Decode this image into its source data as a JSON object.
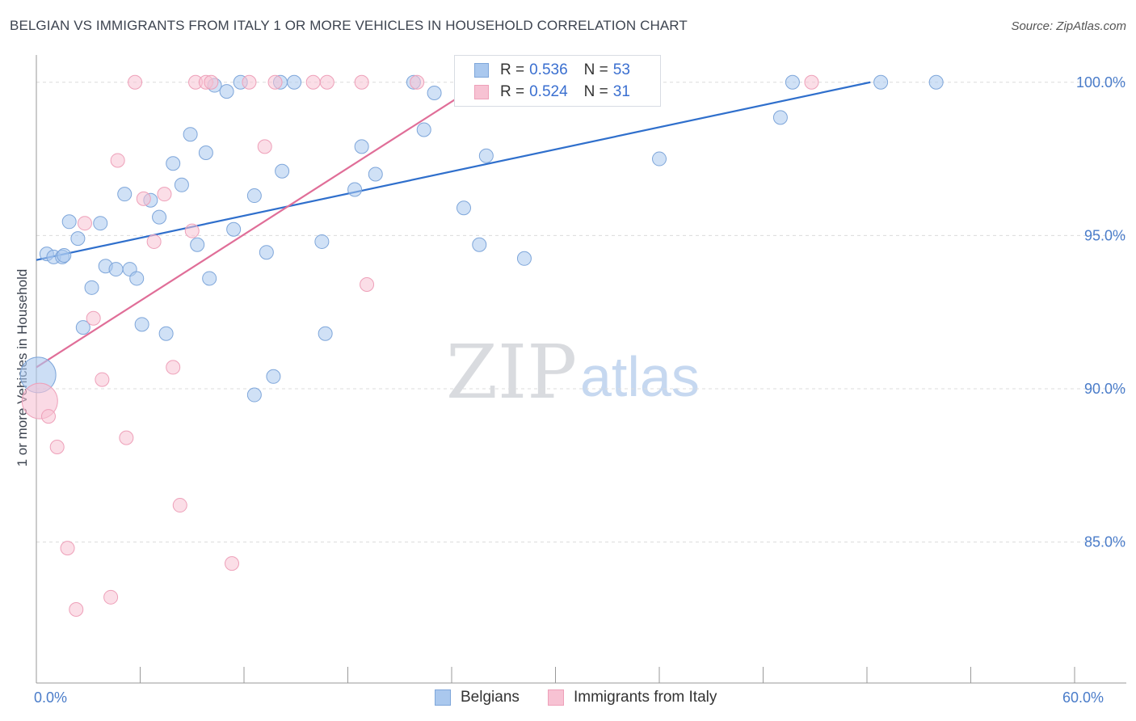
{
  "title": "BELGIAN VS IMMIGRANTS FROM ITALY 1 OR MORE VEHICLES IN HOUSEHOLD CORRELATION CHART",
  "source": "Source: ZipAtlas.com",
  "watermark": {
    "zip": "ZIP",
    "atlas": "atlas"
  },
  "legend_top": {
    "belgians": {
      "r_label": "R =",
      "r_value": "0.536",
      "n_label": "N =",
      "n_value": "53"
    },
    "italy": {
      "r_label": "R =",
      "r_value": "0.524",
      "n_label": "N =",
      "n_value": "31"
    }
  },
  "legend_bottom": {
    "belgians": "Belgians",
    "italy": "Immigrants from Italy"
  },
  "colors": {
    "belgians_fill": "#aac8ee",
    "belgians_stroke": "#7ea6da",
    "belgians_line": "#2f6fcc",
    "italy_fill": "#f7c2d3",
    "italy_stroke": "#eea0b9",
    "italy_line": "#e06e98",
    "grid": "#dcdcdc",
    "axis": "#999999",
    "tick_text": "#4a7cc9"
  },
  "chart_data": {
    "type": "scatter",
    "title": "BELGIAN VS IMMIGRANTS FROM ITALY 1 OR MORE VEHICLES IN HOUSEHOLD CORRELATION CHART",
    "xlabel": "",
    "ylabel": "1 or more Vehicles in Household",
    "xlim": [
      0,
      60
    ],
    "ylim": [
      80.4,
      100.6
    ],
    "x_tick_labels": [
      {
        "value": 0,
        "label": "0.0%"
      },
      {
        "value": 60,
        "label": "60.0%"
      }
    ],
    "x_minor_ticks": [
      6,
      12,
      18,
      24,
      30,
      36,
      42,
      48,
      54,
      60
    ],
    "y_ticks": [
      {
        "value": 85,
        "label": "85.0%"
      },
      {
        "value": 90,
        "label": "90.0%"
      },
      {
        "value": 95,
        "label": "95.0%"
      },
      {
        "value": 100,
        "label": "100.0%"
      }
    ],
    "grid": true,
    "series": [
      {
        "name": "Belgians",
        "trend": {
          "x": [
            0,
            48.2
          ],
          "y": [
            94.2,
            100.0
          ]
        },
        "points": [
          {
            "x": 0.1,
            "y": 90.45,
            "big": true
          },
          {
            "x": 0.6,
            "y": 94.4
          },
          {
            "x": 1.0,
            "y": 94.3
          },
          {
            "x": 1.5,
            "y": 94.3
          },
          {
            "x": 1.9,
            "y": 95.45
          },
          {
            "x": 2.4,
            "y": 94.9
          },
          {
            "x": 2.7,
            "y": 92.0
          },
          {
            "x": 3.2,
            "y": 93.3
          },
          {
            "x": 3.7,
            "y": 95.4
          },
          {
            "x": 4.0,
            "y": 94.0
          },
          {
            "x": 4.6,
            "y": 93.9
          },
          {
            "x": 5.1,
            "y": 96.35
          },
          {
            "x": 5.4,
            "y": 93.9
          },
          {
            "x": 5.8,
            "y": 93.6
          },
          {
            "x": 6.1,
            "y": 92.1
          },
          {
            "x": 6.6,
            "y": 96.15
          },
          {
            "x": 7.1,
            "y": 95.6
          },
          {
            "x": 7.5,
            "y": 91.8
          },
          {
            "x": 7.9,
            "y": 97.35
          },
          {
            "x": 8.4,
            "y": 96.65
          },
          {
            "x": 8.9,
            "y": 98.3
          },
          {
            "x": 9.3,
            "y": 94.7
          },
          {
            "x": 9.8,
            "y": 97.7
          },
          {
            "x": 10.0,
            "y": 93.6
          },
          {
            "x": 10.3,
            "y": 99.9
          },
          {
            "x": 11.0,
            "y": 99.7
          },
          {
            "x": 11.4,
            "y": 95.2
          },
          {
            "x": 11.8,
            "y": 100.0
          },
          {
            "x": 12.6,
            "y": 96.3
          },
          {
            "x": 12.6,
            "y": 89.8
          },
          {
            "x": 13.3,
            "y": 94.45
          },
          {
            "x": 13.7,
            "y": 90.4
          },
          {
            "x": 14.1,
            "y": 100.0
          },
          {
            "x": 14.2,
            "y": 97.1
          },
          {
            "x": 14.9,
            "y": 100.0
          },
          {
            "x": 16.5,
            "y": 94.8
          },
          {
            "x": 16.7,
            "y": 91.8
          },
          {
            "x": 18.4,
            "y": 96.5
          },
          {
            "x": 18.8,
            "y": 97.9
          },
          {
            "x": 19.6,
            "y": 97.0
          },
          {
            "x": 21.8,
            "y": 100.0
          },
          {
            "x": 22.4,
            "y": 98.45
          },
          {
            "x": 23.0,
            "y": 99.65
          },
          {
            "x": 24.7,
            "y": 95.9
          },
          {
            "x": 25.6,
            "y": 94.7
          },
          {
            "x": 26.0,
            "y": 97.6
          },
          {
            "x": 28.2,
            "y": 94.25
          },
          {
            "x": 36.0,
            "y": 97.5
          },
          {
            "x": 43.0,
            "y": 98.85
          },
          {
            "x": 43.7,
            "y": 100.0
          },
          {
            "x": 48.8,
            "y": 100.0
          },
          {
            "x": 52.0,
            "y": 100.0
          },
          {
            "x": 1.6,
            "y": 94.35
          }
        ]
      },
      {
        "name": "Immigrants from Italy",
        "trend": {
          "x": [
            0,
            25.2
          ],
          "y": [
            90.7,
            99.8
          ]
        },
        "points": [
          {
            "x": 0.2,
            "y": 89.6,
            "big": true
          },
          {
            "x": 0.7,
            "y": 89.1
          },
          {
            "x": 1.2,
            "y": 88.1
          },
          {
            "x": 1.8,
            "y": 84.8
          },
          {
            "x": 2.3,
            "y": 82.8
          },
          {
            "x": 2.8,
            "y": 95.4
          },
          {
            "x": 3.3,
            "y": 92.3
          },
          {
            "x": 3.8,
            "y": 90.3
          },
          {
            "x": 4.3,
            "y": 83.2
          },
          {
            "x": 4.7,
            "y": 97.45
          },
          {
            "x": 5.2,
            "y": 88.4
          },
          {
            "x": 5.7,
            "y": 100.0
          },
          {
            "x": 6.2,
            "y": 96.2
          },
          {
            "x": 6.8,
            "y": 94.8
          },
          {
            "x": 7.4,
            "y": 96.35
          },
          {
            "x": 7.9,
            "y": 90.7
          },
          {
            "x": 8.3,
            "y": 86.2
          },
          {
            "x": 9.0,
            "y": 95.15
          },
          {
            "x": 9.2,
            "y": 100.0
          },
          {
            "x": 9.8,
            "y": 100.0
          },
          {
            "x": 10.1,
            "y": 100.0
          },
          {
            "x": 11.3,
            "y": 84.3
          },
          {
            "x": 12.3,
            "y": 100.0
          },
          {
            "x": 13.2,
            "y": 97.9
          },
          {
            "x": 13.8,
            "y": 100.0
          },
          {
            "x": 16.0,
            "y": 100.0
          },
          {
            "x": 16.8,
            "y": 100.0
          },
          {
            "x": 18.8,
            "y": 100.0
          },
          {
            "x": 19.1,
            "y": 93.4
          },
          {
            "x": 22.0,
            "y": 100.0
          },
          {
            "x": 44.8,
            "y": 100.0
          }
        ]
      }
    ]
  }
}
